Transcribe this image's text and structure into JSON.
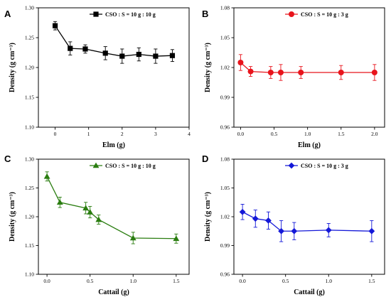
{
  "chart_data": [
    {
      "panel": "A",
      "type": "line",
      "xlabel": "Elm (g)",
      "ylabel": "Density (g cm⁻³)",
      "xlim": [
        -0.5,
        4
      ],
      "ylim": [
        1.1,
        1.3
      ],
      "xticks": [
        0,
        1,
        2,
        3,
        4
      ],
      "yticks": [
        1.1,
        1.15,
        1.2,
        1.25,
        1.3
      ],
      "ytick_labels": [
        "1.10",
        "1.15",
        "1.20",
        "1.25",
        "1.30"
      ],
      "color": "#000000",
      "marker": "square",
      "legend_position": "top-right",
      "series": [
        {
          "name": "CSO : S = 10 g : 10 g",
          "x": [
            0,
            0.45,
            0.9,
            1.5,
            2.0,
            2.5,
            3.0,
            3.5
          ],
          "y": [
            1.27,
            1.232,
            1.231,
            1.224,
            1.219,
            1.222,
            1.219,
            1.22
          ],
          "err": [
            0.007,
            0.011,
            0.007,
            0.011,
            0.012,
            0.011,
            0.012,
            0.01
          ]
        }
      ]
    },
    {
      "panel": "B",
      "type": "line",
      "xlabel": "Elm (g)",
      "ylabel": "Density (g cm⁻³)",
      "xlim": [
        -0.1,
        2.15
      ],
      "ylim": [
        0.96,
        1.08
      ],
      "xticks": [
        0.0,
        0.5,
        1.0,
        1.5,
        2.0
      ],
      "xtick_labels": [
        "0.0",
        "0.5",
        "1.0",
        "1.5",
        "2.0"
      ],
      "yticks": [
        0.96,
        0.99,
        1.02,
        1.05,
        1.08
      ],
      "ytick_labels": [
        "0.96",
        "0.99",
        "1.02",
        "1.05",
        "1.08"
      ],
      "color": "#e8141c",
      "marker": "circle",
      "legend_position": "top-right",
      "series": [
        {
          "name": "CSO : S = 10 g : 3 g",
          "x": [
            0,
            0.15,
            0.45,
            0.6,
            0.9,
            1.5,
            2.0
          ],
          "y": [
            1.025,
            1.016,
            1.015,
            1.015,
            1.015,
            1.015,
            1.015
          ],
          "err": [
            0.008,
            0.005,
            0.006,
            0.008,
            0.006,
            0.007,
            0.008
          ]
        }
      ]
    },
    {
      "panel": "C",
      "type": "line",
      "xlabel": "Cattail (g)",
      "ylabel": "Density (g cm⁻³)",
      "xlim": [
        -0.1,
        1.65
      ],
      "ylim": [
        1.1,
        1.3
      ],
      "xticks": [
        0.0,
        0.5,
        1.0,
        1.5
      ],
      "xtick_labels": [
        "0.0",
        "0.5",
        "1.0",
        "1.5"
      ],
      "yticks": [
        1.1,
        1.15,
        1.2,
        1.25,
        1.3
      ],
      "ytick_labels": [
        "1.10",
        "1.15",
        "1.20",
        "1.25",
        "1.30"
      ],
      "color": "#2a7d10",
      "marker": "triangle",
      "legend_position": "top-right",
      "series": [
        {
          "name": "CSO : S = 10 g : 10 g",
          "x": [
            0,
            0.15,
            0.45,
            0.5,
            0.6,
            1.0,
            1.5
          ],
          "y": [
            1.27,
            1.225,
            1.215,
            1.208,
            1.195,
            1.163,
            1.162
          ],
          "err": [
            0.008,
            0.009,
            0.01,
            0.01,
            0.008,
            0.01,
            0.008
          ]
        }
      ]
    },
    {
      "panel": "D",
      "type": "line",
      "xlabel": "Cattail (g)",
      "ylabel": "Density (g cm⁻³)",
      "xlim": [
        -0.1,
        1.65
      ],
      "ylim": [
        0.96,
        1.08
      ],
      "xticks": [
        0.0,
        0.5,
        1.0,
        1.5
      ],
      "xtick_labels": [
        "0.0",
        "0.5",
        "1.0",
        "1.5"
      ],
      "yticks": [
        0.96,
        0.99,
        1.02,
        1.05,
        1.08
      ],
      "ytick_labels": [
        "0.96",
        "0.99",
        "1.02",
        "1.05",
        "1.08"
      ],
      "color": "#1418d8",
      "marker": "diamond",
      "legend_position": "top-right",
      "series": [
        {
          "name": "CSO : S = 10 g : 3 g",
          "x": [
            0,
            0.15,
            0.3,
            0.45,
            0.6,
            1.0,
            1.5
          ],
          "y": [
            1.025,
            1.018,
            1.016,
            1.005,
            1.005,
            1.006,
            1.005
          ],
          "err": [
            0.008,
            0.009,
            0.009,
            0.011,
            0.009,
            0.007,
            0.011
          ]
        }
      ]
    }
  ]
}
